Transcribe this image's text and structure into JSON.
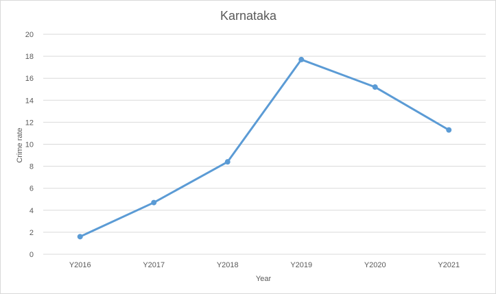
{
  "chart_data": {
    "type": "line",
    "title": "Karnataka",
    "xlabel": "Year",
    "ylabel": "Crime rate",
    "categories": [
      "Y2016",
      "Y2017",
      "Y2018",
      "Y2019",
      "Y2020",
      "Y2021"
    ],
    "series": [
      {
        "values": [
          1.6,
          4.7,
          8.4,
          17.7,
          15.2,
          11.3
        ],
        "color": "#5b9bd5"
      }
    ],
    "ylim": [
      0,
      20
    ],
    "yticks": [
      0,
      2,
      4,
      6,
      8,
      10,
      12,
      14,
      16,
      18,
      20
    ],
    "grid": true,
    "legend": "none",
    "marker": "circle"
  }
}
